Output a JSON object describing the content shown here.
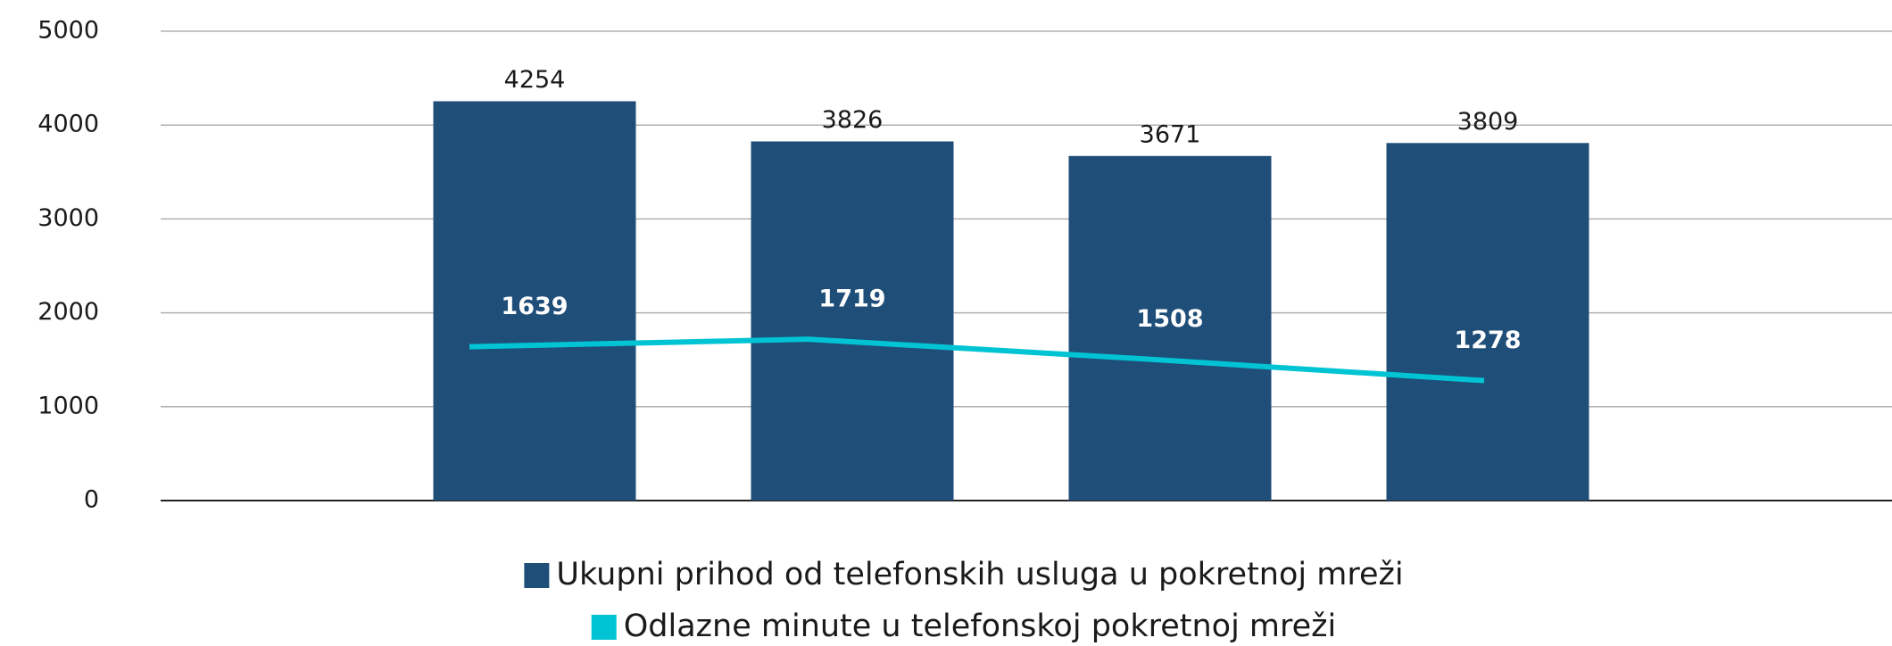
{
  "chart_data": {
    "type": "bar",
    "categories": [
      null,
      null,
      null,
      null
    ],
    "ylim": [
      0,
      5000
    ],
    "yticks": [
      0,
      1000,
      2000,
      3000,
      4000,
      5000
    ],
    "grid": true,
    "series": [
      {
        "name": "Ukupni prihod od telefonskih usluga u pokretnoj mreži",
        "color": "#1f4e79",
        "values": [
          4254,
          3826,
          3671,
          3809
        ]
      },
      {
        "name": "Odlazne minute u telefonskoj pokretnoj mreži",
        "type": "line",
        "color": "#00c4d4",
        "values": [
          1639,
          1719,
          1508,
          1278
        ]
      }
    ]
  }
}
